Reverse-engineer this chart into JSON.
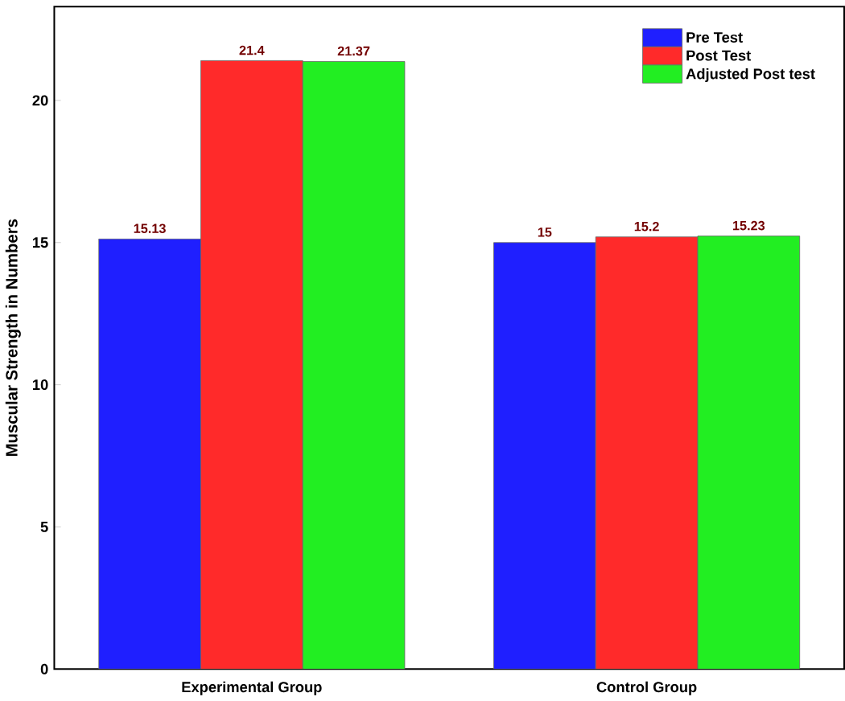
{
  "chart_data": {
    "type": "bar",
    "ylabel": "Muscular Strength in Numbers",
    "categories": [
      "Experimental Group",
      "Control Group"
    ],
    "series": [
      {
        "name": "Pre Test",
        "color": "#1f1fff",
        "values": [
          15.13,
          15
        ]
      },
      {
        "name": "Post Test",
        "color": "#ff2a2a",
        "values": [
          21.4,
          15.2
        ]
      },
      {
        "name": "Adjusted Post test",
        "color": "#22ee22",
        "values": [
          21.37,
          15.23
        ]
      }
    ],
    "ylim": [
      0,
      23.3
    ],
    "yticks": [
      0,
      5,
      10,
      15,
      20
    ],
    "data_labels": true,
    "legend": "top right",
    "grid": false
  }
}
